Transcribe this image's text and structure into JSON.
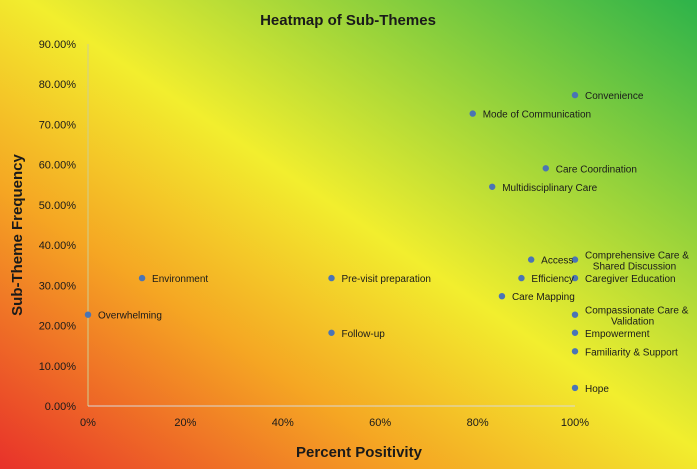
{
  "chart_data": {
    "type": "scatter",
    "title": "Heatmap of Sub-Themes",
    "xlabel": "Percent Positivity",
    "ylabel": "Sub-Theme Frequency",
    "xlim": [
      0,
      1.0
    ],
    "ylim": [
      0,
      0.9
    ],
    "x_ticks": [
      "0%",
      "20%",
      "40%",
      "60%",
      "80%",
      "100%"
    ],
    "y_ticks": [
      "0.00%",
      "10.00%",
      "20.00%",
      "30.00%",
      "40.00%",
      "50.00%",
      "60.00%",
      "70.00%",
      "80.00%",
      "90.00%"
    ],
    "grid": false,
    "legend": "none",
    "background_gradient": [
      "#e8312a",
      "#f5a623",
      "#f2ee2e",
      "#2db34a"
    ],
    "marker_color": "#4a74b5",
    "points": [
      {
        "label": "Overwhelming",
        "x": 0.0,
        "y": 0.227
      },
      {
        "label": "Environment",
        "x": 0.111,
        "y": 0.318
      },
      {
        "label": "Pre-visit preparation",
        "x": 0.5,
        "y": 0.318
      },
      {
        "label": "Follow-up",
        "x": 0.5,
        "y": 0.182
      },
      {
        "label": "Mode of Communication",
        "x": 0.79,
        "y": 0.727
      },
      {
        "label": "Convenience",
        "x": 1.0,
        "y": 0.773
      },
      {
        "label": "Care Coordination",
        "x": 0.94,
        "y": 0.591
      },
      {
        "label": "Multidisciplinary Care",
        "x": 0.83,
        "y": 0.545
      },
      {
        "label": "Access",
        "x": 0.91,
        "y": 0.364
      },
      {
        "label": "Comprehensive Care & Shared Discussion",
        "x": 1.0,
        "y": 0.364
      },
      {
        "label": "Efficiency",
        "x": 0.89,
        "y": 0.318
      },
      {
        "label": "Caregiver Education",
        "x": 1.0,
        "y": 0.318
      },
      {
        "label": "Care Mapping",
        "x": 0.85,
        "y": 0.273
      },
      {
        "label": "Compassionate Care & Validation",
        "x": 1.0,
        "y": 0.227
      },
      {
        "label": "Empowerment",
        "x": 1.0,
        "y": 0.182
      },
      {
        "label": "Familiarity & Support",
        "x": 1.0,
        "y": 0.136
      },
      {
        "label": "Hope",
        "x": 1.0,
        "y": 0.045
      }
    ]
  }
}
